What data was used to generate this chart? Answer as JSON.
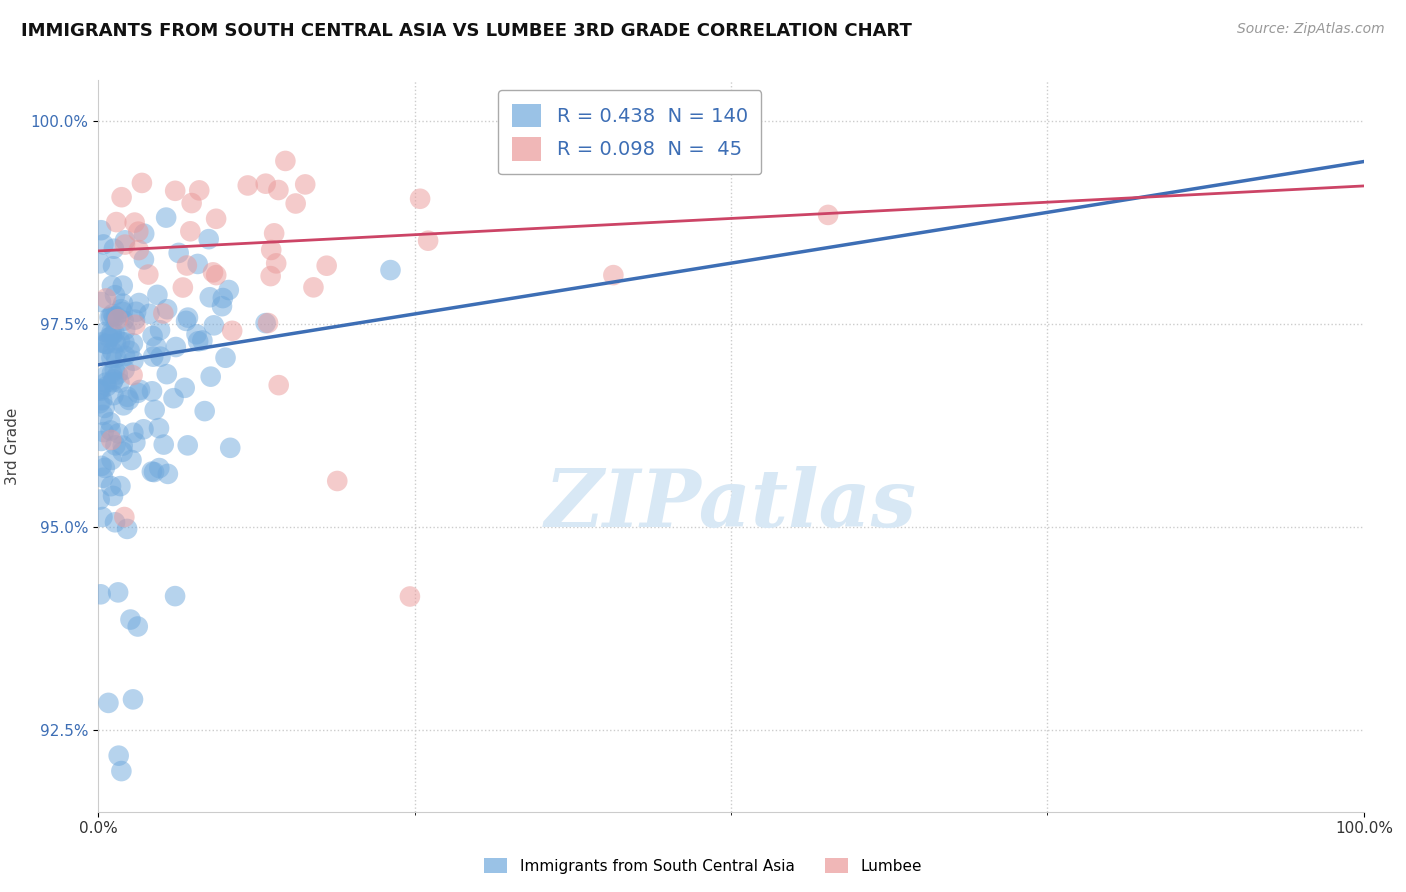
{
  "title": "IMMIGRANTS FROM SOUTH CENTRAL ASIA VS LUMBEE 3RD GRADE CORRELATION CHART",
  "source_text": "Source: ZipAtlas.com",
  "ylabel": "3rd Grade",
  "xmin": 0.0,
  "xmax": 1.0,
  "ymin": 0.915,
  "ymax": 1.005,
  "xtick_labels": [
    "0.0%",
    "100.0%"
  ],
  "ytick_labels": [
    "92.5%",
    "95.0%",
    "97.5%",
    "100.0%"
  ],
  "ytick_values": [
    0.925,
    0.95,
    0.975,
    1.0
  ],
  "blue_R": 0.438,
  "blue_N": 140,
  "pink_R": 0.098,
  "pink_N": 45,
  "blue_color": "#6fa8dc",
  "pink_color": "#ea9999",
  "blue_line_color": "#3d6eb5",
  "pink_line_color": "#cc4466",
  "watermark_color": "#d8e8f5",
  "watermark_text": "ZIPatlas",
  "legend_label_blue": "Immigrants from South Central Asia",
  "legend_label_pink": "Lumbee",
  "blue_line_y0": 0.97,
  "blue_line_y1": 0.995,
  "pink_line_y0": 0.984,
  "pink_line_y1": 0.992
}
